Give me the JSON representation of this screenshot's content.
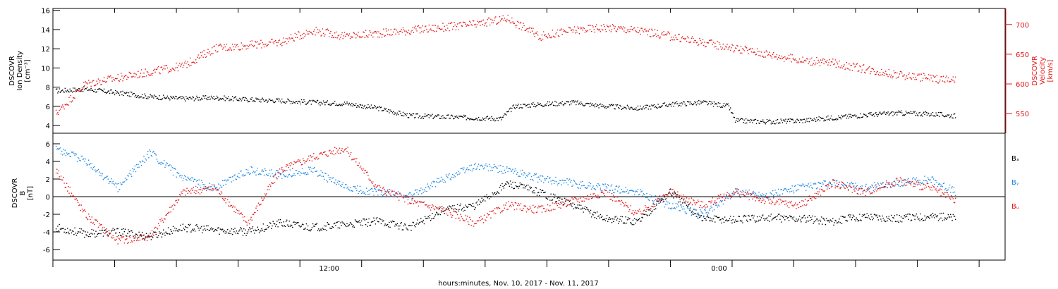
{
  "chart_data": [
    {
      "type": "scatter",
      "title": "",
      "ylabel_lines": [
        "DSCOVR",
        "Ion Density",
        "[cm⁻³]"
      ],
      "y2label_lines": [
        "DSCOVR",
        "Velocity",
        "[km/s]"
      ],
      "ylim": [
        3.2,
        16.2
      ],
      "yticks": [
        4,
        6,
        8,
        10,
        12,
        14,
        16
      ],
      "y2lim": [
        517,
        727
      ],
      "y2ticks": [
        550,
        600,
        650,
        700
      ],
      "series": [
        {
          "axis": "left",
          "color": "#000000",
          "points": [
            [
              0.1,
              7.6
            ],
            [
              1.0,
              7.8
            ],
            [
              2.0,
              7.4
            ],
            [
              3.0,
              7.0
            ],
            [
              4.0,
              6.8
            ],
            [
              5.0,
              6.9
            ],
            [
              6.0,
              6.7
            ],
            [
              7.0,
              6.6
            ],
            [
              8.0,
              6.4
            ],
            [
              9.0,
              6.3
            ],
            [
              10.0,
              5.8
            ],
            [
              11.0,
              5.0
            ],
            [
              12.0,
              4.9
            ],
            [
              13.0,
              4.8
            ],
            [
              13.8,
              4.7
            ],
            [
              14.2,
              6.0
            ],
            [
              15.0,
              6.2
            ],
            [
              16.0,
              6.4
            ],
            [
              17.0,
              6.0
            ],
            [
              18.0,
              5.8
            ],
            [
              19.0,
              6.2
            ],
            [
              20.0,
              6.4
            ],
            [
              20.8,
              6.0
            ],
            [
              21.0,
              4.5
            ],
            [
              22.0,
              4.4
            ],
            [
              23.0,
              4.5
            ],
            [
              24.0,
              4.8
            ],
            [
              25.0,
              5.1
            ],
            [
              26.0,
              5.3
            ],
            [
              27.0,
              5.2
            ],
            [
              27.8,
              5.0
            ]
          ]
        },
        {
          "axis": "right",
          "color": "#e41a1c",
          "points": [
            [
              0.1,
              550
            ],
            [
              1.0,
              600
            ],
            [
              2.0,
              610
            ],
            [
              3.0,
              620
            ],
            [
              4.0,
              630
            ],
            [
              5.0,
              660
            ],
            [
              6.0,
              665
            ],
            [
              7.0,
              670
            ],
            [
              8.0,
              690
            ],
            [
              9.0,
              680
            ],
            [
              10.0,
              685
            ],
            [
              11.0,
              690
            ],
            [
              12.0,
              695
            ],
            [
              13.0,
              700
            ],
            [
              14.0,
              710
            ],
            [
              15.0,
              680
            ],
            [
              16.0,
              690
            ],
            [
              17.0,
              695
            ],
            [
              18.0,
              690
            ],
            [
              19.0,
              680
            ],
            [
              20.0,
              670
            ],
            [
              21.0,
              660
            ],
            [
              22.0,
              650
            ],
            [
              23.0,
              640
            ],
            [
              24.0,
              635
            ],
            [
              25.0,
              625
            ],
            [
              26.0,
              615
            ],
            [
              27.0,
              610
            ],
            [
              27.8,
              605
            ]
          ]
        }
      ]
    },
    {
      "type": "scatter",
      "title": "",
      "ylabel_lines": [
        "DSCOVR",
        "B",
        "[nT]"
      ],
      "ylim": [
        -7.2,
        7.2
      ],
      "yticks": [
        -6,
        -4,
        -2,
        0,
        2,
        4,
        6
      ],
      "zero_line": true,
      "legend": [
        "Bₓ",
        "Bᵧ",
        "Bᵤ"
      ],
      "legend_colors": [
        "#000000",
        "#1e88e5",
        "#e41a1c"
      ],
      "series": [
        {
          "name": "Bₓ",
          "color": "#000000",
          "points": [
            [
              0.1,
              -3.5
            ],
            [
              1.0,
              -4.2
            ],
            [
              2.0,
              -4.0
            ],
            [
              3.0,
              -4.5
            ],
            [
              4.0,
              -3.5
            ],
            [
              5.0,
              -3.8
            ],
            [
              6.0,
              -4.0
            ],
            [
              7.0,
              -3.0
            ],
            [
              8.0,
              -3.5
            ],
            [
              9.0,
              -3.2
            ],
            [
              10.0,
              -2.8
            ],
            [
              11.0,
              -3.5
            ],
            [
              12.0,
              -1.5
            ],
            [
              13.0,
              -1.0
            ],
            [
              14.0,
              1.5
            ],
            [
              15.0,
              0.5
            ],
            [
              16.0,
              -1.0
            ],
            [
              17.0,
              -2.5
            ],
            [
              18.0,
              -2.8
            ],
            [
              19.0,
              0.5
            ],
            [
              20.0,
              -2.5
            ],
            [
              21.0,
              -2.6
            ],
            [
              22.0,
              -2.4
            ],
            [
              23.0,
              -2.5
            ],
            [
              24.0,
              -2.8
            ],
            [
              25.0,
              -2.2
            ],
            [
              26.0,
              -2.5
            ],
            [
              27.0,
              -2.2
            ],
            [
              27.8,
              -2.4
            ]
          ]
        },
        {
          "name": "Bᵧ",
          "color": "#1e88e5",
          "points": [
            [
              0.1,
              5.5
            ],
            [
              1.0,
              4.0
            ],
            [
              2.0,
              1.0
            ],
            [
              3.0,
              5.0
            ],
            [
              4.0,
              2.0
            ],
            [
              5.0,
              1.0
            ],
            [
              6.0,
              3.0
            ],
            [
              7.0,
              2.5
            ],
            [
              8.0,
              3.0
            ],
            [
              9.0,
              1.0
            ],
            [
              10.0,
              0.5
            ],
            [
              11.0,
              0.0
            ],
            [
              12.0,
              2.0
            ],
            [
              13.0,
              3.5
            ],
            [
              14.0,
              3.0
            ],
            [
              15.0,
              2.0
            ],
            [
              16.0,
              1.5
            ],
            [
              17.0,
              1.0
            ],
            [
              18.0,
              0.5
            ],
            [
              19.0,
              -1.0
            ],
            [
              20.0,
              -2.0
            ],
            [
              21.0,
              0.5
            ],
            [
              22.0,
              0.2
            ],
            [
              23.0,
              1.0
            ],
            [
              24.0,
              1.5
            ],
            [
              25.0,
              1.0
            ],
            [
              26.0,
              1.5
            ],
            [
              27.0,
              2.0
            ],
            [
              27.8,
              0.5
            ]
          ]
        },
        {
          "name": "Bᵤ",
          "color": "#e41a1c",
          "points": [
            [
              0.1,
              3.0
            ],
            [
              1.0,
              -2.0
            ],
            [
              2.0,
              -5.0
            ],
            [
              3.0,
              -4.5
            ],
            [
              4.0,
              0.5
            ],
            [
              5.0,
              1.0
            ],
            [
              6.0,
              -3.0
            ],
            [
              7.0,
              3.0
            ],
            [
              8.0,
              4.5
            ],
            [
              9.0,
              5.5
            ],
            [
              10.0,
              1.0
            ],
            [
              11.0,
              -0.5
            ],
            [
              12.0,
              -1.5
            ],
            [
              13.0,
              -3.0
            ],
            [
              14.0,
              -1.0
            ],
            [
              15.0,
              -1.5
            ],
            [
              16.0,
              -0.5
            ],
            [
              17.0,
              0.5
            ],
            [
              18.0,
              -2.0
            ],
            [
              19.0,
              0.5
            ],
            [
              20.0,
              -1.0
            ],
            [
              21.0,
              0.5
            ],
            [
              22.0,
              -0.5
            ],
            [
              23.0,
              -1.0
            ],
            [
              24.0,
              1.5
            ],
            [
              25.0,
              0.5
            ],
            [
              26.0,
              1.8
            ],
            [
              27.0,
              1.0
            ],
            [
              27.8,
              -0.5
            ]
          ]
        }
      ]
    }
  ],
  "x_axis": {
    "xlim": [
      0.0,
      29.3
    ],
    "tick_positions": [
      0.0,
      1.9,
      3.8,
      5.7,
      7.6,
      9.5,
      11.4,
      13.3,
      15.2,
      17.1,
      19.0,
      20.9,
      22.8,
      24.7,
      26.6,
      28.5
    ],
    "labels": [
      {
        "x": 8.5,
        "text": "12:00"
      },
      {
        "x": 20.5,
        "text": "0:00"
      }
    ],
    "xlabel": "hours:minutes, Nov. 10, 2017 - Nov. 11, 2017"
  }
}
